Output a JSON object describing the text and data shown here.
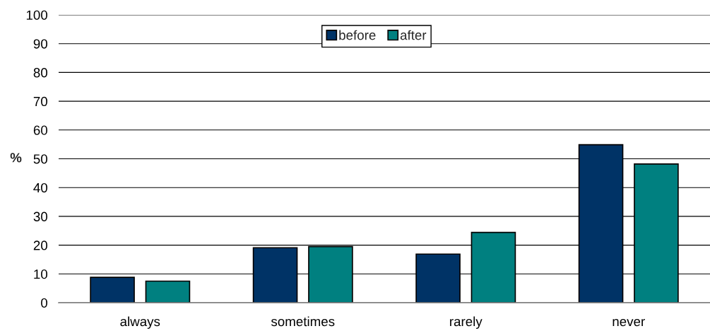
{
  "chart_data": {
    "type": "bar",
    "ylabel": "%",
    "categories": [
      "always",
      "sometimes",
      "rarely",
      "never"
    ],
    "series": [
      {
        "name": "before",
        "color": "#003366",
        "values": [
          8.8,
          19.1,
          16.9,
          54.9
        ]
      },
      {
        "name": "after",
        "color": "#008080",
        "values": [
          7.5,
          19.5,
          24.4,
          48.2
        ]
      }
    ],
    "ylim": [
      0,
      100
    ],
    "yticks": [
      0,
      10,
      20,
      30,
      40,
      50,
      60,
      70,
      80,
      90,
      100
    ],
    "grid": "y",
    "legend": "top"
  }
}
